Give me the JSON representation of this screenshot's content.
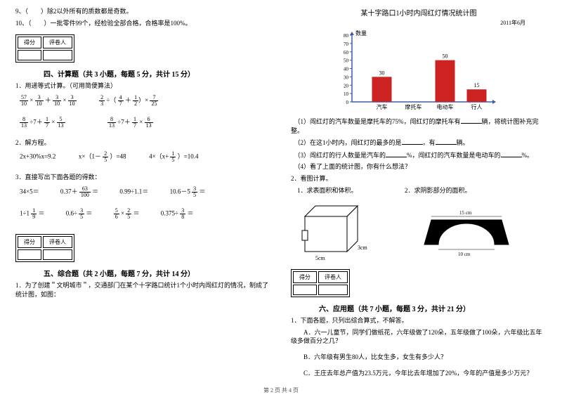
{
  "left": {
    "q9": "9、（　　）除2以外所有的质数都是奇数。",
    "q10": "10、（　　）一批零件99个，经检验全部合格，合格率是100%。",
    "score_labels": [
      "得分",
      "评卷人"
    ],
    "section4": "四、计算题（共 3 小题，每题 5 分，共计 15 分）",
    "s4_q1": "1．用递等式计算。（可用简便算法）",
    "s4_q2": "2．解方程。",
    "s4_q2_a": "2x+30%x=9.2",
    "s4_q2_b": "x×（1－",
    "s4_q2_b2": "）=48",
    "s4_q2_c": "4×（x+",
    "s4_q2_c2": "）=10.4",
    "s4_q3": "3．直接写出下面各题的得数：",
    "s4_q3_items": [
      "34×5＝",
      "0.37＋",
      "＝",
      "0.99÷1.1＝",
      "10.6－5",
      "＝",
      "1÷1",
      "＝",
      "0.6÷",
      "＝",
      "×",
      "＝",
      "0.375÷",
      "＝"
    ],
    "section5": "五、综合题（共 2 小题，每题 7 分，共计 14 分）",
    "s5_q1": "1．为了创建＂文明城市＂，交通部门在某个十字路口统计1个小时内闯红灯的情况，制成了统计图，如图：",
    "fracs": {
      "f1": {
        "n": "57",
        "d": "10"
      },
      "f2": {
        "n": "3",
        "d": "10"
      },
      "f3": {
        "n": "3",
        "d": "10"
      },
      "f4": {
        "n": "3",
        "d": "10"
      },
      "f5": {
        "n": "2",
        "d": "3"
      },
      "f6": {
        "n": "4",
        "d": "7"
      },
      "f7": {
        "n": "1",
        "d": "2"
      },
      "f8": {
        "n": "7",
        "d": "25"
      },
      "f9": {
        "n": "8",
        "d": "13"
      },
      "f10": {
        "n": "1",
        "d": "7"
      },
      "f11": {
        "n": "5",
        "d": "13"
      },
      "f12": {
        "n": "8",
        "d": "13"
      },
      "f13": {
        "n": "1",
        "d": "7"
      },
      "f14": {
        "n": "6",
        "d": "13"
      },
      "f15": {
        "n": "2",
        "d": "5"
      },
      "f16": {
        "n": "1",
        "d": "5"
      },
      "f17": {
        "n": "63",
        "d": "100"
      },
      "f18": {
        "n": "3",
        "d": "5"
      },
      "f19": {
        "n": "1",
        "d": "9"
      },
      "f20": {
        "n": "3",
        "d": "5"
      },
      "f21": {
        "n": "5",
        "d": "6"
      },
      "f22": {
        "n": "2",
        "d": "5"
      },
      "f23": {
        "n": "3",
        "d": "8"
      }
    }
  },
  "right": {
    "chart": {
      "title": "某十字路口1小时内闯红灯情况统计图",
      "date": "2011年6月",
      "ylabel": "数量",
      "ymax": 80,
      "ytick_step": 10,
      "categories": [
        "汽车",
        "摩托车",
        "电动车",
        "行人"
      ],
      "values": [
        30,
        null,
        50,
        15
      ],
      "value_labels": [
        "30",
        "",
        "50",
        "15"
      ],
      "bar_color": "#cc2222",
      "axis_color": "#3a5aa8",
      "tick_color": "#3a5aa8",
      "bg": "#ffffff"
    },
    "q1": "（1）闯红灯的汽车数量是摩托车的75%，闯红灯的摩托车有",
    "q1b": "辆，将统计图补充完整。",
    "q2": "（2）在这1小时内，闯红灯的最多的是",
    "q2b": "，有",
    "q2c": "辆。",
    "q3": "（3）闯红灯的行人数量是汽车的",
    "q3b": "%，闯红灯的汽车数量是电动车的",
    "q3c": "%。",
    "q4": "（4）看了上面的统计图，你有什么想法？",
    "p2": "2．看图计算。",
    "p2a": "1．求表面积和体积。",
    "p2b": "2．求阴影部分的面积。",
    "cube": {
      "w": "5cm",
      "h": "3cm"
    },
    "arch": {
      "top": "15 cm",
      "bottom": "10 cm"
    },
    "score_labels": [
      "得分",
      "评卷人"
    ],
    "section6": "六、应用题（共 7 小题，每题 3 分，共计 21 分）",
    "s6_q1": "1．下面各题，只列出综合算式，不解答。",
    "s6_qA": "A．六一儿童节，同学们做纸花，六年级做了120朵，五年级做了100朵，六年级比五年级多做百分之几？",
    "s6_qB": "B．六年级有男生80人，比女生多，女生有多少人？",
    "s6_qC": "C．王庄去年总产值为23.5万元，今年比去年增加了20%，今年的产值是多少万元？"
  },
  "footer": "第 2 页 共 4 页"
}
